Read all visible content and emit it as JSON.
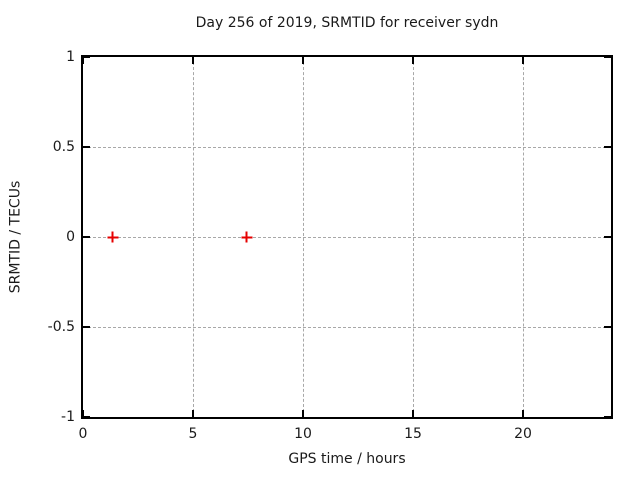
{
  "colors": {
    "background": "#ffffff",
    "axis": "#000000",
    "grid": "#a8a8a8",
    "text": "#1a1a1a",
    "marker": "#e60000"
  },
  "chart_data": {
    "type": "scatter",
    "title": "Day 256 of 2019, SRMTID for receiver sydn",
    "xlabel": "GPS time / hours",
    "ylabel": "SRMTID / TECUs",
    "xlim": [
      0,
      24
    ],
    "ylim": [
      -1,
      1
    ],
    "x_ticks": [
      0,
      5,
      10,
      15,
      20
    ],
    "x_tick_labels": [
      "0",
      "5",
      "10",
      "15",
      "20"
    ],
    "y_ticks": [
      -1,
      -0.5,
      0,
      0.5,
      1
    ],
    "y_tick_labels": [
      "-1",
      "-0.5",
      "0",
      "0.5",
      "1"
    ],
    "grid": true,
    "grid_style": "dashed",
    "legend_position": "none",
    "ticks_mirrored": true,
    "series": [
      {
        "name": "SRMTID",
        "marker": "plus",
        "color": "#e60000",
        "points": [
          {
            "x": 1.36,
            "y": 0.0
          },
          {
            "x": 7.45,
            "y": 0.0
          }
        ]
      }
    ]
  }
}
